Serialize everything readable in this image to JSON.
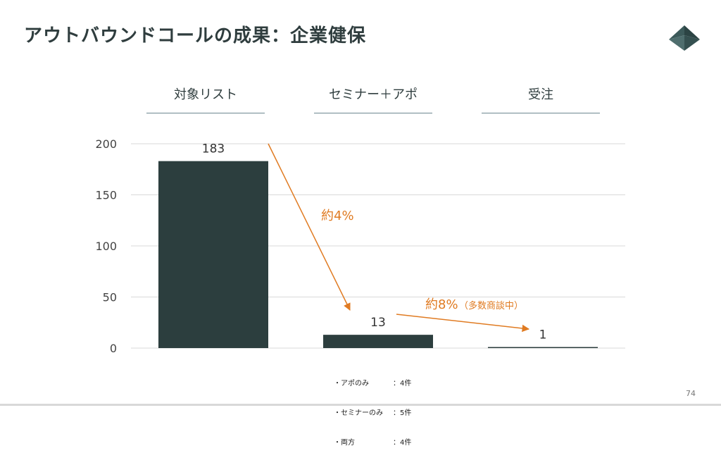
{
  "title": "アウトバウンドコールの成果：企業健保",
  "headers": [
    "対象リスト",
    "セミナー＋アポ",
    "受注"
  ],
  "chart_data": {
    "type": "bar",
    "categories": [
      "対象リスト",
      "セミナー＋アポ",
      "受注"
    ],
    "values": [
      183,
      13,
      1
    ],
    "ylim": [
      0,
      200
    ],
    "yticks": [
      0,
      50,
      100,
      150,
      200
    ],
    "grid": true,
    "bar_color": "#2c3e3e",
    "annotations": [
      {
        "text": "約4%",
        "from": "対象リスト",
        "to": "セミナー＋アポ",
        "color": "#e07b22"
      },
      {
        "text": "約8%",
        "note": "（多数商談中）",
        "from": "セミナー＋アポ",
        "to": "受注",
        "color": "#e07b22"
      }
    ]
  },
  "notes": [
    {
      "label": "・アポのみ",
      "value": "：4件"
    },
    {
      "label": "・セミナーのみ",
      "value": "：5件"
    },
    {
      "label": "・両方",
      "value": "：4件"
    }
  ],
  "page_number": "74",
  "colors": {
    "accent": "#e07b22",
    "bar": "#2c3e3e",
    "grid": "#d9d9d9",
    "rule": "#6c8790"
  }
}
